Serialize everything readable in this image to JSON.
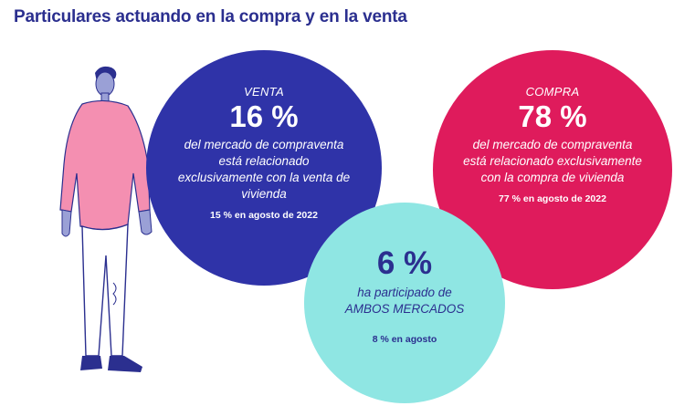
{
  "title": "Particulares actuando en la compra y en la venta",
  "colors": {
    "title": "#2b2f8f",
    "venta": "#2f33a8",
    "compra": "#df1b5c",
    "ambos": "#8fe6e3"
  },
  "venta": {
    "label": "VENTA",
    "percent": "16 %",
    "description": "del mercado de compraventa está relacionado exclusivamente con la venta de vivienda",
    "note": "15 % en agosto de 2022"
  },
  "compra": {
    "label": "COMPRA",
    "percent": "78 %",
    "description": "del mercado de compraventa está relacionado exclusivamente con la compra de vivienda",
    "note": "77 % en agosto de 2022"
  },
  "ambos": {
    "percent": "6 %",
    "description_line1": "ha participado de",
    "description_line2": "AMBOS MERCADOS",
    "note": "8 % en agosto"
  },
  "illustration": "person-illustration"
}
